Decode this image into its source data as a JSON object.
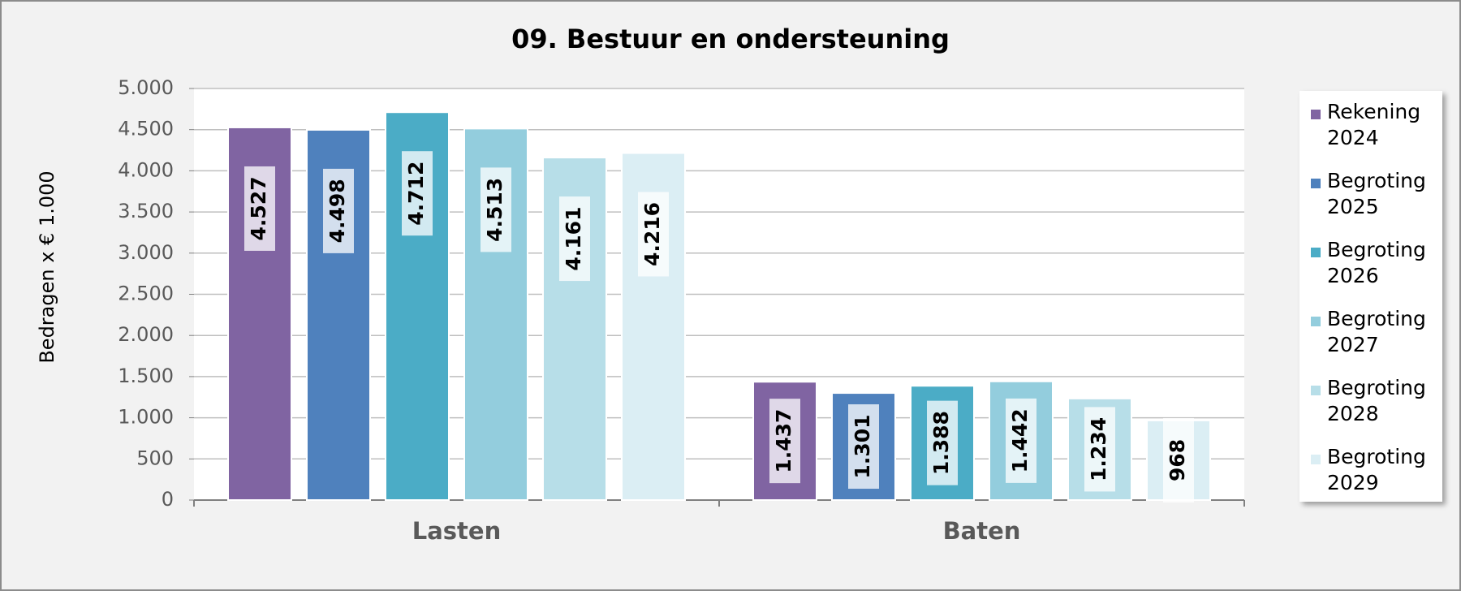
{
  "chart_data": {
    "type": "bar",
    "title": "09. Bestuur en ondersteuning",
    "y_label": "Bedragen x € 1.000",
    "categories": [
      "Lasten",
      "Baten"
    ],
    "series": [
      {
        "name": "Rekening 2024",
        "color": "#8064a2",
        "values": [
          4527,
          1437
        ],
        "value_labels": [
          "4.527",
          "1.437"
        ]
      },
      {
        "name": "Begroting 2025",
        "color": "#4f81bd",
        "values": [
          4498,
          1301
        ],
        "value_labels": [
          "4.498",
          "1.301"
        ]
      },
      {
        "name": "Begroting 2026",
        "color": "#4bacc6",
        "values": [
          4712,
          1388
        ],
        "value_labels": [
          "4.712",
          "1.388"
        ]
      },
      {
        "name": "Begroting 2027",
        "color": "#93cddd",
        "values": [
          4513,
          1442
        ],
        "value_labels": [
          "4.513",
          "1.442"
        ]
      },
      {
        "name": "Begroting 2028",
        "color": "#b7dee8",
        "values": [
          4161,
          1234
        ],
        "value_labels": [
          "4.161",
          "1.234"
        ]
      },
      {
        "name": "Begroting 2029",
        "color": "#dbeef4",
        "values": [
          4216,
          968
        ],
        "value_labels": [
          "4.216",
          "968"
        ]
      }
    ],
    "ylim": [
      0,
      5000
    ],
    "yticks": [
      0,
      500,
      {
        "value": 1000,
        "label": "1.000"
      },
      {
        "value": 1500,
        "label": "1.500"
      },
      {
        "value": 2000,
        "label": "2.000"
      },
      {
        "value": 2500,
        "label": "2.500"
      },
      {
        "value": 3000,
        "label": "3.000"
      },
      {
        "value": 3500,
        "label": "3.500"
      },
      {
        "value": 4000,
        "label": "4.000"
      },
      {
        "value": 4500,
        "label": "4.500"
      },
      {
        "value": 5000,
        "label": "5.000"
      }
    ],
    "grid": true,
    "legend": "right"
  }
}
